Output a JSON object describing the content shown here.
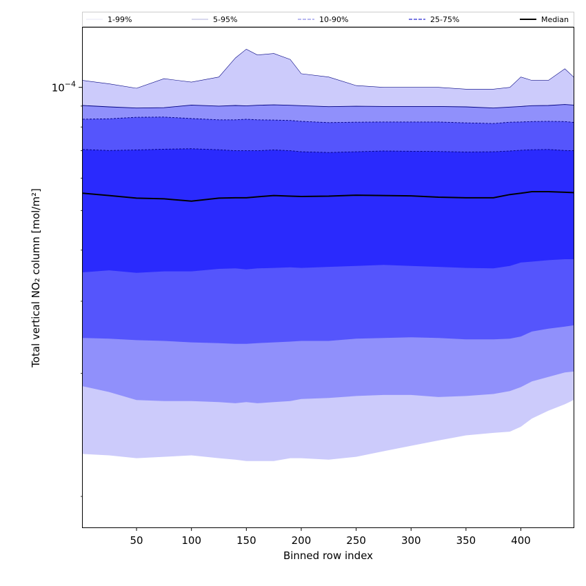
{
  "chart_data": {
    "type": "area",
    "title": "",
    "xlabel": "Binned row index",
    "ylabel": "Total vertical NO₂ column [mol/m²]",
    "x_range": [
      1,
      448
    ],
    "y_scale": "log",
    "y_range": [
      8.4e-06,
      0.00014
    ],
    "x_ticks": [
      50,
      100,
      150,
      200,
      250,
      300,
      350,
      400
    ],
    "x_tick_labels": [
      "50",
      "100",
      "150",
      "200",
      "250",
      "300",
      "350",
      "400"
    ],
    "y_major_ticks": [
      0.0001
    ],
    "y_major_labels": [
      "10^-4"
    ],
    "y_minor_ticks": [
      1e-05,
      2e-05,
      3e-05,
      4e-05,
      5e-05,
      6e-05,
      7e-05,
      8e-05,
      9e-05
    ],
    "grid": false,
    "legend_position": "top",
    "legend": [
      {
        "label": "1-99%",
        "style": "solid",
        "color": "#e6e6f5",
        "width": 1
      },
      {
        "label": "5-95%",
        "style": "solid",
        "color": "#b0b0dc",
        "width": 1
      },
      {
        "label": "10-90%",
        "style": "dashed",
        "color": "#8c8ce6",
        "width": 1.2
      },
      {
        "label": "25-75%",
        "style": "dashed",
        "color": "#4c4cd8",
        "width": 1.4
      },
      {
        "label": "Median",
        "style": "solid",
        "color": "#000000",
        "width": 2
      }
    ],
    "x": [
      1,
      25,
      50,
      75,
      100,
      125,
      140,
      150,
      160,
      175,
      190,
      200,
      225,
      250,
      275,
      300,
      325,
      350,
      375,
      390,
      400,
      410,
      425,
      440,
      448
    ],
    "bands": [
      {
        "name": "1-99%",
        "fill": "#cccbfb",
        "upper": [
          0.000104,
          0.000102,
          9.95e-05,
          0.000105,
          0.000103,
          0.000106,
          0.000118,
          0.000124,
          0.00012,
          0.000121,
          0.000117,
          0.000108,
          0.000106,
          0.000101,
          0.0001,
          0.0001,
          0.0001,
          9.9e-05,
          9.9e-05,
          0.0001,
          0.000106,
          0.000104,
          0.000104,
          0.000111,
          0.000106
        ],
        "lower": [
          1.27e-05,
          1.26e-05,
          1.24e-05,
          1.25e-05,
          1.26e-05,
          1.24e-05,
          1.23e-05,
          1.22e-05,
          1.22e-05,
          1.22e-05,
          1.24e-05,
          1.24e-05,
          1.23e-05,
          1.25e-05,
          1.29e-05,
          1.33e-05,
          1.37e-05,
          1.41e-05,
          1.43e-05,
          1.44e-05,
          1.48e-05,
          1.55e-05,
          1.62e-05,
          1.68e-05,
          1.72e-05
        ]
      },
      {
        "name": "5-95%",
        "fill": "#9090fb",
        "upper": [
          9.03e-05,
          8.96e-05,
          8.9e-05,
          8.92e-05,
          9.05e-05,
          9e-05,
          9.03e-05,
          9.01e-05,
          9.04e-05,
          9.06e-05,
          9.04e-05,
          9.02e-05,
          8.97e-05,
          8.99e-05,
          8.98e-05,
          8.98e-05,
          8.98e-05,
          8.96e-05,
          8.9e-05,
          8.95e-05,
          8.98e-05,
          9.02e-05,
          9.03e-05,
          9.08e-05,
          9.05e-05
        ]
      },
      {
        "name": "10-90%",
        "fill": "#5555fc",
        "upper": [
          8.36e-05,
          8.38e-05,
          8.45e-05,
          8.46e-05,
          8.39e-05,
          8.33e-05,
          8.33e-05,
          8.36e-05,
          8.33e-05,
          8.32e-05,
          8.3e-05,
          8.26e-05,
          8.2e-05,
          8.22e-05,
          8.23e-05,
          8.23e-05,
          8.23e-05,
          8.19e-05,
          8.16e-05,
          8.22e-05,
          8.23e-05,
          8.25e-05,
          8.26e-05,
          8.25e-05,
          8.21e-05
        ]
      },
      {
        "name": "25-75%",
        "fill": "#2a2afd",
        "upper": [
          7.05e-05,
          7.01e-05,
          7.03e-05,
          7.06e-05,
          7.08e-05,
          7.04e-05,
          7e-05,
          7e-05,
          7e-05,
          7.03e-05,
          7e-05,
          6.96e-05,
          6.93e-05,
          6.96e-05,
          6.99e-05,
          6.98e-05,
          6.97e-05,
          6.95e-05,
          6.96e-05,
          6.99e-05,
          7.02e-05,
          7.04e-05,
          7.05e-05,
          7.01e-05,
          7e-05
        ]
      }
    ],
    "lower_bands": [
      {
        "name": "5-95%",
        "lower": [
          1.86e-05,
          1.8e-05,
          1.72e-05,
          1.71e-05,
          1.71e-05,
          1.7e-05,
          1.69e-05,
          1.7e-05,
          1.69e-05,
          1.7e-05,
          1.71e-05,
          1.73e-05,
          1.74e-05,
          1.76e-05,
          1.77e-05,
          1.77e-05,
          1.75e-05,
          1.76e-05,
          1.78e-05,
          1.81e-05,
          1.85e-05,
          1.91e-05,
          1.96e-05,
          2.01e-05,
          2.02e-05
        ]
      },
      {
        "name": "10-90%",
        "lower": [
          2.44e-05,
          2.43e-05,
          2.41e-05,
          2.4e-05,
          2.38e-05,
          2.37e-05,
          2.36e-05,
          2.36e-05,
          2.37e-05,
          2.38e-05,
          2.39e-05,
          2.4e-05,
          2.4e-05,
          2.43e-05,
          2.44e-05,
          2.45e-05,
          2.44e-05,
          2.42e-05,
          2.42e-05,
          2.43e-05,
          2.46e-05,
          2.53e-05,
          2.57e-05,
          2.6e-05,
          2.62e-05
        ]
      },
      {
        "name": "25-75%",
        "lower": [
          3.53e-05,
          3.57e-05,
          3.52e-05,
          3.55e-05,
          3.55e-05,
          3.6e-05,
          3.61e-05,
          3.59e-05,
          3.61e-05,
          3.62e-05,
          3.63e-05,
          3.62e-05,
          3.64e-05,
          3.66e-05,
          3.68e-05,
          3.66e-05,
          3.64e-05,
          3.62e-05,
          3.61e-05,
          3.66e-05,
          3.73e-05,
          3.75e-05,
          3.78e-05,
          3.8e-05,
          3.8e-05
        ]
      }
    ],
    "median": [
      5.51e-05,
      5.44e-05,
      5.36e-05,
      5.34e-05,
      5.27e-05,
      5.36e-05,
      5.37e-05,
      5.37e-05,
      5.4e-05,
      5.44e-05,
      5.42e-05,
      5.41e-05,
      5.42e-05,
      5.45e-05,
      5.44e-05,
      5.43e-05,
      5.39e-05,
      5.37e-05,
      5.37e-05,
      5.47e-05,
      5.51e-05,
      5.56e-05,
      5.56e-05,
      5.54e-05,
      5.53e-05
    ]
  }
}
